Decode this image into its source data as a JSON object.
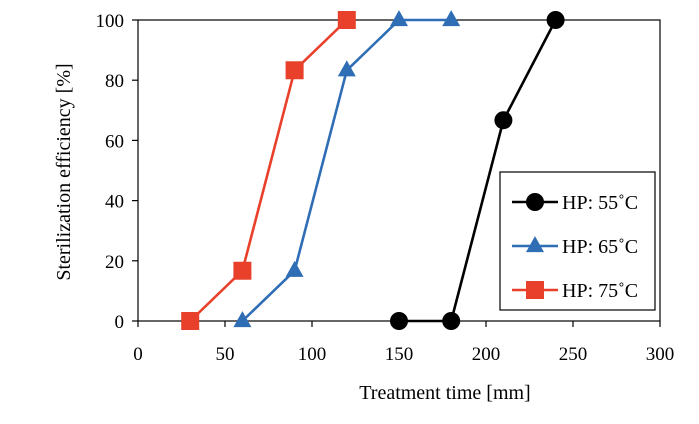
{
  "chart_data": {
    "type": "line",
    "title": "",
    "xlabel": "Treatment time [mm]",
    "ylabel": "Sterilization efficiency [%]",
    "xlim": [
      0,
      300
    ],
    "ylim": [
      0,
      100
    ],
    "xticks": [
      0,
      50,
      100,
      150,
      200,
      250,
      300
    ],
    "yticks": [
      0,
      20,
      40,
      60,
      80,
      100
    ],
    "grid": false,
    "legend_position": "lower-right",
    "series": [
      {
        "name": "HP: 55˚C",
        "marker": "circle",
        "color": "#000000",
        "x": [
          150,
          180,
          210,
          240
        ],
        "y": [
          0,
          0,
          66.7,
          100
        ]
      },
      {
        "name": "HP: 65˚C",
        "marker": "triangle",
        "color": "#2f6db5",
        "x": [
          60,
          90,
          120,
          150,
          180
        ],
        "y": [
          0,
          16.7,
          83.3,
          100,
          100
        ]
      },
      {
        "name": "HP: 75˚C",
        "marker": "square",
        "color": "#e8402a",
        "x": [
          30,
          60,
          90,
          120
        ],
        "y": [
          0,
          16.7,
          83.3,
          100
        ]
      }
    ]
  }
}
